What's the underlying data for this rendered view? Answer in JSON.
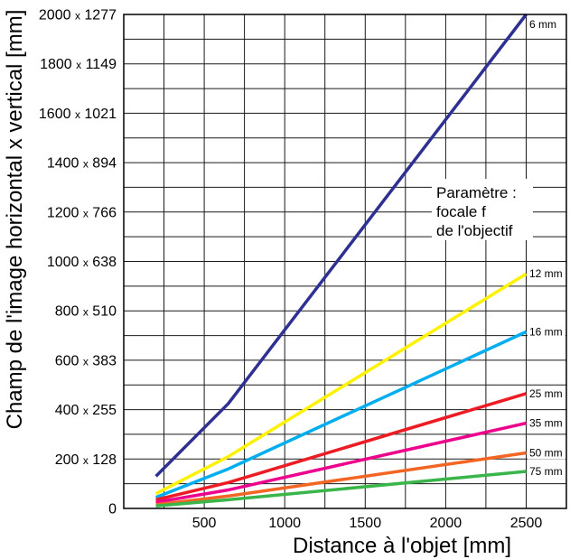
{
  "chart_data": {
    "type": "line",
    "xlabel": "Distance à l'objet [mm]",
    "ylabel": "Champ de l'image horizontal x vertical [mm]",
    "xlim": [
      0,
      2750
    ],
    "ylim": [
      0,
      2000
    ],
    "xticks": [
      500,
      1000,
      1500,
      2000,
      2500
    ],
    "xtick_labels": [
      "500",
      "1000",
      "1500",
      "2000",
      "2500"
    ],
    "yticks": [
      0,
      200,
      400,
      600,
      800,
      1000,
      1200,
      1400,
      1600,
      1800,
      2000
    ],
    "ytick_labels": [
      "0",
      "200 x 128",
      "400 x 255",
      "600 x 383",
      "800 x 510",
      "1000 x 638",
      "1200 x 766",
      "1400 x 894",
      "1600 x 1021",
      "1800 x 1149",
      "2000 x 1277"
    ],
    "grid": true,
    "grid_step": {
      "x": 250,
      "y": 100
    },
    "x": [
      200,
      650,
      2500
    ],
    "series": [
      {
        "name": "6 mm",
        "color": "#2e3192",
        "values": [
          130,
          425,
          2000
        ]
      },
      {
        "name": "12 mm",
        "color": "#fff200",
        "values": [
          60,
          210,
          950
        ]
      },
      {
        "name": "16 mm",
        "color": "#00aeef",
        "values": [
          45,
          160,
          715
        ]
      },
      {
        "name": "25 mm",
        "color": "#ed1c24",
        "values": [
          35,
          105,
          465
        ]
      },
      {
        "name": "35 mm",
        "color": "#ec008c",
        "values": [
          25,
          75,
          345
        ]
      },
      {
        "name": "50 mm",
        "color": "#f26522",
        "values": [
          15,
          50,
          225
        ]
      },
      {
        "name": "75 mm",
        "color": "#39b54a",
        "values": [
          10,
          35,
          150
        ]
      }
    ],
    "series_label_placement": "line-end",
    "annotation": [
      "Paramètre :",
      "focale f",
      "de l'objectif"
    ]
  }
}
